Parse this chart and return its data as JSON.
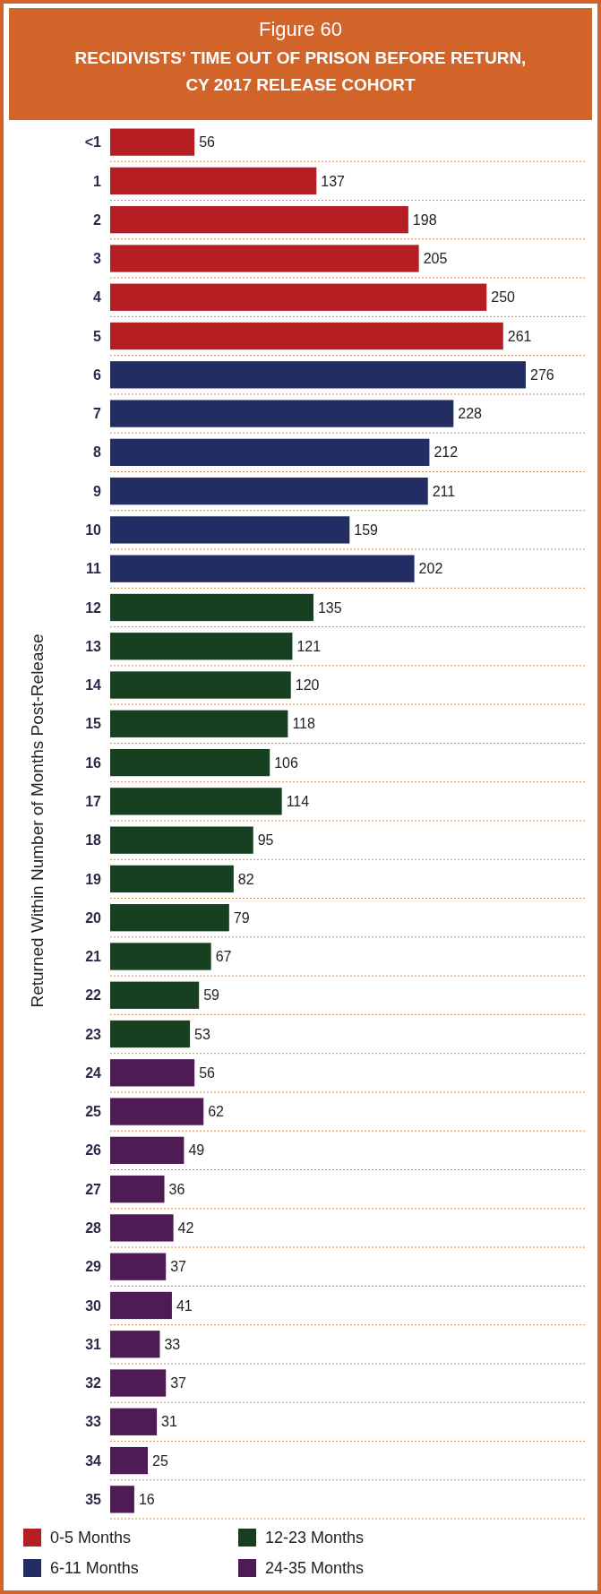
{
  "chart_data": {
    "type": "bar",
    "orientation": "horizontal",
    "title": "Figure 60",
    "subtitle": "RECIDIVISTS' TIME OUT OF PRISON BEFORE RETURN, CY 2017 RELEASE COHORT",
    "ylabel": "Returned Within Number of Months Post-Release",
    "categories": [
      "<1",
      "1",
      "2",
      "3",
      "4",
      "5",
      "6",
      "7",
      "8",
      "9",
      "10",
      "11",
      "12",
      "13",
      "14",
      "15",
      "16",
      "17",
      "18",
      "19",
      "20",
      "21",
      "22",
      "23",
      "24",
      "25",
      "26",
      "27",
      "28",
      "29",
      "30",
      "31",
      "32",
      "33",
      "34",
      "35"
    ],
    "series": [
      {
        "name": "0-5 Months",
        "color": "#b51f24",
        "values": [
          56,
          137,
          198,
          205,
          250,
          261,
          null,
          null,
          null,
          null,
          null,
          null,
          null,
          null,
          null,
          null,
          null,
          null,
          null,
          null,
          null,
          null,
          null,
          null,
          null,
          null,
          null,
          null,
          null,
          null,
          null,
          null,
          null,
          null,
          null,
          null
        ]
      },
      {
        "name": "6-11 Months",
        "color": "#222d63",
        "values": [
          null,
          null,
          null,
          null,
          null,
          null,
          276,
          228,
          212,
          211,
          159,
          202,
          null,
          null,
          null,
          null,
          null,
          null,
          null,
          null,
          null,
          null,
          null,
          null,
          null,
          null,
          null,
          null,
          null,
          null,
          null,
          null,
          null,
          null,
          null,
          null
        ]
      },
      {
        "name": "12-23 Months",
        "color": "#16401f",
        "values": [
          null,
          null,
          null,
          null,
          null,
          null,
          null,
          null,
          null,
          null,
          null,
          null,
          135,
          121,
          120,
          118,
          106,
          114,
          95,
          82,
          79,
          67,
          59,
          53,
          null,
          null,
          null,
          null,
          null,
          null,
          null,
          null,
          null,
          null,
          null,
          null
        ]
      },
      {
        "name": "24-35 Months",
        "color": "#4e1b54",
        "values": [
          null,
          null,
          null,
          null,
          null,
          null,
          null,
          null,
          null,
          null,
          null,
          null,
          null,
          null,
          null,
          null,
          null,
          null,
          null,
          null,
          null,
          null,
          null,
          null,
          56,
          62,
          49,
          36,
          42,
          37,
          41,
          33,
          37,
          31,
          25,
          16
        ]
      }
    ],
    "data_labels": true,
    "grid": "y",
    "legend": "bottom"
  }
}
